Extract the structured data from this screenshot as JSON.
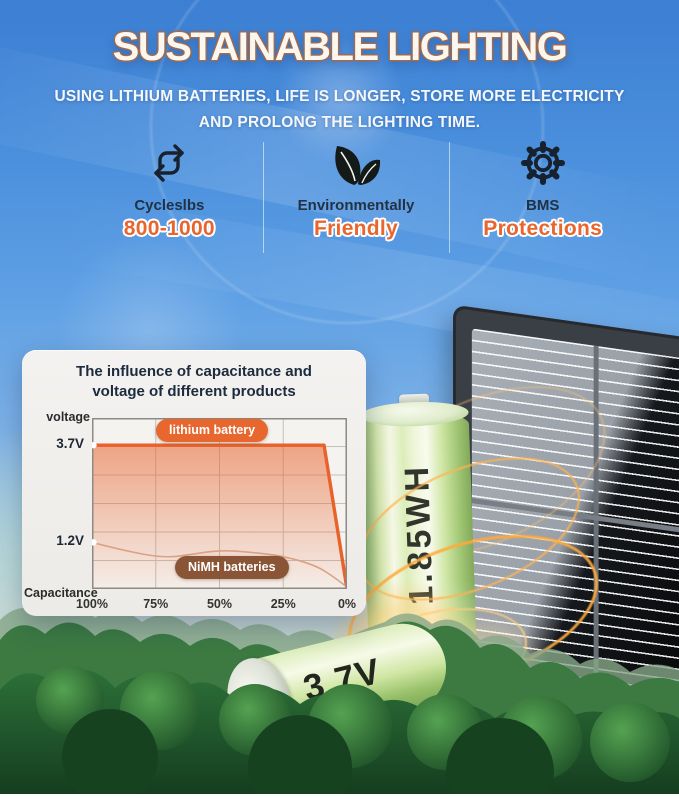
{
  "header": {
    "title": "SUSTAINABLE LIGHTING",
    "subtitle_line1": "USING LITHIUM BATTERIES, LIFE IS LONGER, STORE MORE ELECTRICITY",
    "subtitle_line2": "AND PROLONG THE LIGHTING TIME."
  },
  "features": [
    {
      "icon": "cycle-arrows-icon",
      "label": "Cycleslbs",
      "value": "800-1000"
    },
    {
      "icon": "leaves-icon",
      "label": "Environmentally",
      "value": "Friendly"
    },
    {
      "icon": "gear-icon",
      "label": "BMS",
      "value": "Protections"
    }
  ],
  "chart_card": {
    "title_line1": "The influence of capacitance and",
    "title_line2": "voltage of different products"
  },
  "chart_data": {
    "type": "line",
    "title": "The influence of capacitance and voltage of different products",
    "xlabel": "Capacitance",
    "ylabel": "voltage",
    "x_axis_reversed": true,
    "x_tick_labels": [
      "100%",
      "75%",
      "50%",
      "25%",
      "0%"
    ],
    "ylim": [
      0,
      4.4
    ],
    "grid": true,
    "y_ticks": [
      {
        "label": "3.7V",
        "value": 3.7
      },
      {
        "label": "1.2V",
        "value": 1.2
      }
    ],
    "series": [
      {
        "name": "lithium battery",
        "color": "#e8622b",
        "pill_color": "#e8672e",
        "area_fill": true,
        "points": [
          [
            100,
            3.7
          ],
          [
            75,
            3.7
          ],
          [
            50,
            3.7
          ],
          [
            25,
            3.7
          ],
          [
            9,
            3.7
          ],
          [
            0,
            0
          ]
        ]
      },
      {
        "name": "NiMH batteries",
        "color": "#dca183",
        "pill_color": "#8a5536",
        "area_fill": false,
        "points": [
          [
            100,
            1.2
          ],
          [
            85,
            0.95
          ],
          [
            71,
            0.8
          ],
          [
            60,
            0.9
          ],
          [
            50,
            1.0
          ],
          [
            38,
            0.95
          ],
          [
            25,
            0.85
          ],
          [
            12,
            0.6
          ],
          [
            5,
            0.3
          ],
          [
            0,
            0.05
          ]
        ]
      }
    ]
  },
  "battery_large": {
    "label": "1.85WH"
  },
  "battery_small": {
    "label": "3.7V"
  },
  "colors": {
    "accent_orange": "#e8652e",
    "navy_text": "#1c2b3e",
    "pill_brown": "#8a5536",
    "lithium_line": "#e8622b",
    "nimh_line": "#dca183",
    "sky_top": "#3c7fd3",
    "card_bg": "#f1efec",
    "forest_dark": "#1d4d28"
  }
}
